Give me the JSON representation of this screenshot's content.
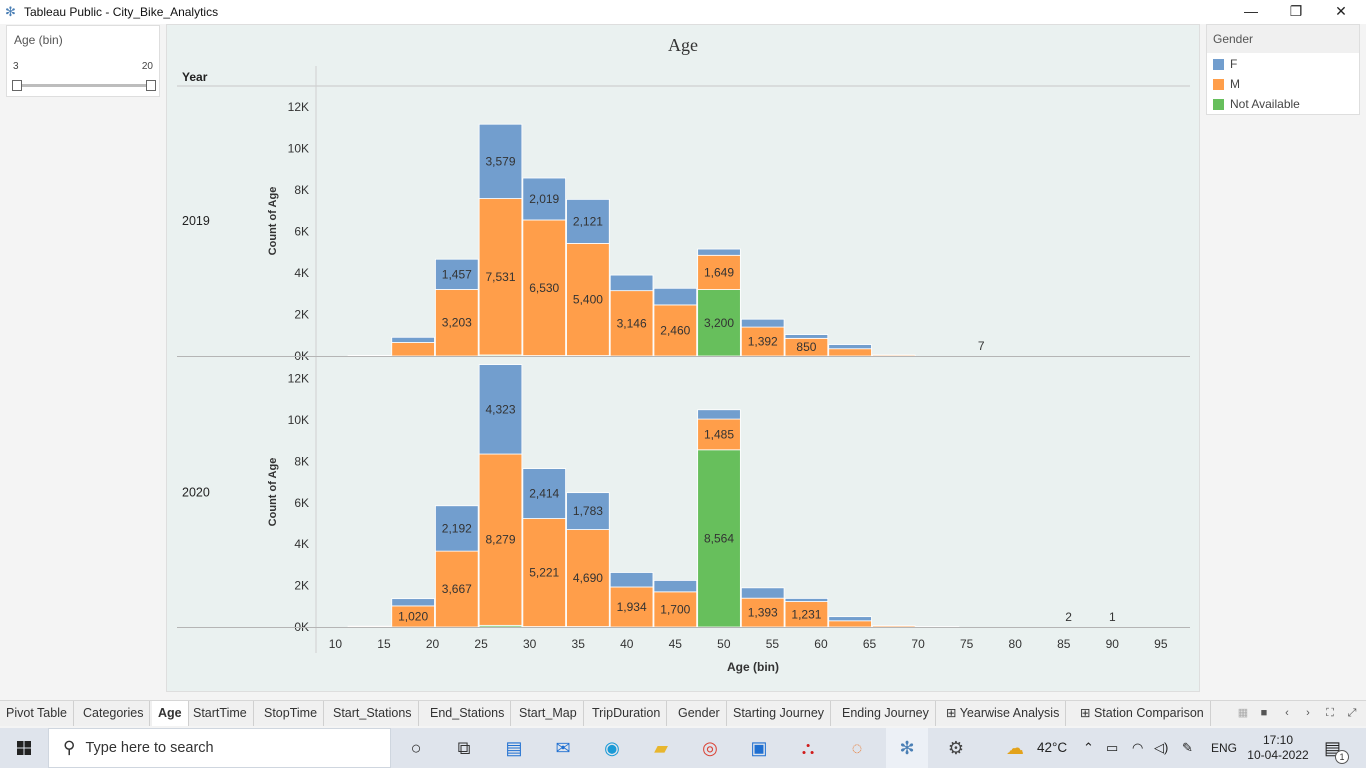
{
  "window": {
    "title": "Tableau Public - City_Bike_Analytics"
  },
  "filter": {
    "label": "Age (bin)",
    "min": "3",
    "max": "20"
  },
  "legend": {
    "title": "Gender",
    "items": [
      {
        "label": "F",
        "color": "#729ece"
      },
      {
        "label": "M",
        "color": "#ff9e4a"
      },
      {
        "label": "Not Available",
        "color": "#67bf5c"
      }
    ]
  },
  "chart": {
    "title": "Age",
    "rows_header": "Year",
    "xlabel": "Age (bin)",
    "ylabel": "Count of Age"
  },
  "chart_data": {
    "type": "bar",
    "stacked": true,
    "title": "Age",
    "xlabel": "Age (bin)",
    "ylabel": "Count of Age",
    "x_ticks": [
      10,
      15,
      20,
      25,
      30,
      35,
      40,
      45,
      50,
      55,
      60,
      65,
      70,
      75,
      80,
      85,
      90,
      95
    ],
    "xlim": [
      8,
      98
    ],
    "bin_width": 4.5,
    "y_ticks": [
      0,
      2000,
      4000,
      6000,
      8000,
      10000,
      12000
    ],
    "y_tick_labels": [
      "0K",
      "2K",
      "4K",
      "6K",
      "8K",
      "10K",
      "12K"
    ],
    "ylim": [
      0,
      13000
    ],
    "series_colors": {
      "F": "#729ece",
      "M": "#ff9e4a",
      "Not Available": "#67bf5c"
    },
    "panels": [
      {
        "year": "2019",
        "bins": [
          {
            "x": 13.5,
            "F": 0,
            "M": 30,
            "NA": 0
          },
          {
            "x": 18,
            "F": 250,
            "M": 650,
            "NA": 0
          },
          {
            "x": 22.5,
            "F": 1457,
            "M": 3203,
            "NA": 0,
            "labels": [
              "F",
              "M"
            ]
          },
          {
            "x": 27,
            "F": 3579,
            "M": 7531,
            "NA": 50,
            "labels": [
              "F",
              "M"
            ]
          },
          {
            "x": 31.5,
            "F": 2019,
            "M": 6530,
            "NA": 20,
            "labels": [
              "F",
              "M"
            ]
          },
          {
            "x": 36,
            "F": 2121,
            "M": 5400,
            "NA": 20,
            "labels": [
              "F",
              "M"
            ]
          },
          {
            "x": 40.5,
            "F": 750,
            "M": 3146,
            "NA": 0,
            "labels": [
              "M"
            ]
          },
          {
            "x": 45,
            "F": 800,
            "M": 2460,
            "NA": 0,
            "labels": [
              "M"
            ]
          },
          {
            "x": 49.5,
            "F": 300,
            "M": 1649,
            "NA": 3200,
            "labels": [
              "M",
              "NA"
            ]
          },
          {
            "x": 54,
            "F": 380,
            "M": 1392,
            "NA": 0,
            "labels": [
              "M"
            ]
          },
          {
            "x": 58.5,
            "F": 180,
            "M": 850,
            "NA": 0,
            "labels": [
              "M"
            ]
          },
          {
            "x": 63,
            "F": 200,
            "M": 350,
            "NA": 0
          },
          {
            "x": 67.5,
            "F": 0,
            "M": 50,
            "NA": 0
          }
        ],
        "annotations": [
          {
            "x": 76.5,
            "text": "7"
          }
        ]
      },
      {
        "year": "2020",
        "bins": [
          {
            "x": 13.5,
            "F": 0,
            "M": 40,
            "NA": 0
          },
          {
            "x": 18,
            "F": 350,
            "M": 1020,
            "NA": 0,
            "labels": [
              "M"
            ]
          },
          {
            "x": 22.5,
            "F": 2192,
            "M": 3667,
            "NA": 0,
            "labels": [
              "F",
              "M"
            ]
          },
          {
            "x": 27,
            "F": 4323,
            "M": 8279,
            "NA": 80,
            "labels": [
              "F",
              "M"
            ]
          },
          {
            "x": 31.5,
            "F": 2414,
            "M": 5221,
            "NA": 20,
            "labels": [
              "F",
              "M"
            ]
          },
          {
            "x": 36,
            "F": 1783,
            "M": 4690,
            "NA": 20,
            "labels": [
              "F",
              "M"
            ]
          },
          {
            "x": 40.5,
            "F": 700,
            "M": 1934,
            "NA": 0,
            "labels": [
              "M"
            ]
          },
          {
            "x": 45,
            "F": 550,
            "M": 1700,
            "NA": 0,
            "labels": [
              "M"
            ]
          },
          {
            "x": 49.5,
            "F": 450,
            "M": 1485,
            "NA": 8564,
            "labels": [
              "M",
              "NA"
            ]
          },
          {
            "x": 54,
            "F": 500,
            "M": 1393,
            "NA": 0,
            "labels": [
              "M"
            ]
          },
          {
            "x": 58.5,
            "F": 150,
            "M": 1231,
            "NA": 0,
            "labels": [
              "M"
            ]
          },
          {
            "x": 63,
            "F": 200,
            "M": 300,
            "NA": 0
          },
          {
            "x": 67.5,
            "F": 0,
            "M": 60,
            "NA": 0
          },
          {
            "x": 72,
            "F": 0,
            "M": 20,
            "NA": 0
          }
        ],
        "annotations": [
          {
            "x": 85.5,
            "text": "2"
          },
          {
            "x": 90,
            "text": "1"
          }
        ]
      }
    ]
  },
  "tabs": [
    {
      "label": "Pivot Table"
    },
    {
      "label": "Categories"
    },
    {
      "label": "Age",
      "active": true
    },
    {
      "label": "StartTime"
    },
    {
      "label": "StopTime"
    },
    {
      "label": "Start_Stations"
    },
    {
      "label": "End_Stations"
    },
    {
      "label": "Start_Map"
    },
    {
      "label": "TripDuration"
    },
    {
      "label": "Gender"
    },
    {
      "label": "Starting Journey"
    },
    {
      "label": "Ending Journey"
    },
    {
      "label": "Yearwise Analysis",
      "icon": "dashboard-icon"
    },
    {
      "label": "Station Comparison",
      "icon": "dashboard-icon"
    }
  ],
  "taskbar": {
    "search_placeholder": "Type here to search",
    "temperature": "42°C",
    "language": "ENG",
    "time": "17:10",
    "date": "10-04-2022",
    "notification_count": "1"
  }
}
